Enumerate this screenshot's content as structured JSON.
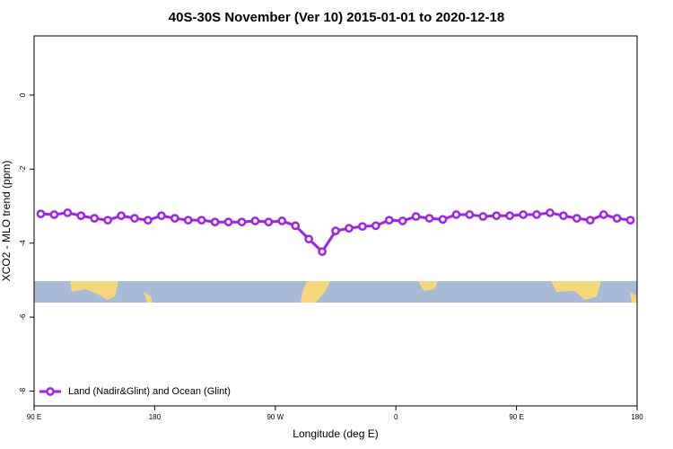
{
  "chart_data": {
    "type": "line",
    "title": "40S-30S November (Ver 10)   2015-01-01 to 2020-12-18",
    "xlabel": "Longitude (deg E)",
    "ylabel": "XCO2 - MLO trend (ppm)",
    "x": [
      95,
      105,
      115,
      125,
      135,
      145,
      155,
      165,
      175,
      185,
      195,
      205,
      215,
      225,
      235,
      245,
      255,
      265,
      275,
      285,
      295,
      305,
      315,
      325,
      335,
      345,
      355,
      365,
      375,
      385,
      395,
      405,
      415,
      425,
      435,
      445,
      455,
      465,
      475,
      485,
      495,
      505,
      515,
      525,
      535
    ],
    "series": [
      {
        "name": "Land (Nadir&Glint) and Ocean (Glint)",
        "color": "#a020f0",
        "values": [
          -3.21,
          -3.23,
          -3.18,
          -3.26,
          -3.33,
          -3.38,
          -3.26,
          -3.33,
          -3.38,
          -3.26,
          -3.33,
          -3.38,
          -3.38,
          -3.43,
          -3.43,
          -3.43,
          -3.4,
          -3.43,
          -3.4,
          -3.53,
          -3.89,
          -4.23,
          -3.67,
          -3.6,
          -3.55,
          -3.53,
          -3.38,
          -3.4,
          -3.28,
          -3.33,
          -3.36,
          -3.23,
          -3.23,
          -3.28,
          -3.26,
          -3.26,
          -3.23,
          -3.23,
          -3.18,
          -3.26,
          -3.33,
          -3.38,
          -3.23,
          -3.33,
          -3.38
        ]
      }
    ],
    "xlim": [
      90,
      540
    ],
    "xticks": [
      {
        "value": 90,
        "label": "90 E"
      },
      180,
      {
        "value": 270,
        "label": "90 W"
      },
      {
        "value": 360,
        "label": "0"
      },
      {
        "value": 450,
        "label": "90 E"
      },
      {
        "value": 540,
        "label": "180"
      }
    ],
    "ylim": [
      -8.4,
      1.6
    ],
    "yticks": [
      0,
      -2,
      -4,
      -6,
      -8
    ],
    "legend": "bottom-left"
  }
}
